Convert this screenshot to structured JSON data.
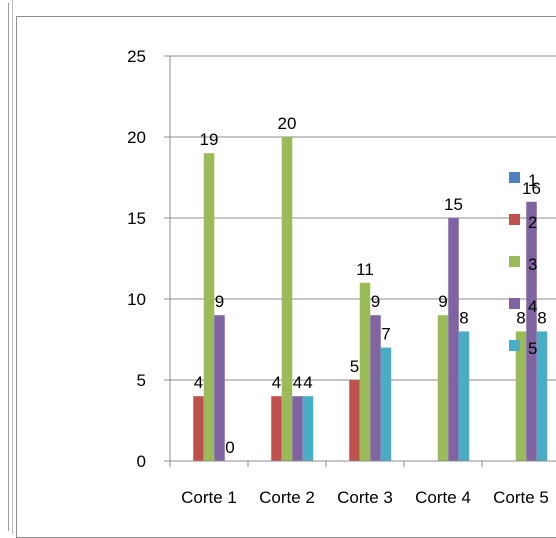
{
  "chart_data": {
    "type": "bar",
    "categories": [
      "Corte 1",
      "Corte 2",
      "Corte 3",
      "Corte 4",
      "Corte 5"
    ],
    "series": [
      {
        "name": "1",
        "values": [
          0,
          0,
          0,
          0,
          0
        ],
        "color": "#4F81BD"
      },
      {
        "name": "2",
        "values": [
          4,
          4,
          5,
          0,
          0
        ],
        "color": "#C0504D"
      },
      {
        "name": "3",
        "values": [
          19,
          20,
          11,
          9,
          8
        ],
        "color": "#9BBB59"
      },
      {
        "name": "4",
        "values": [
          9,
          4,
          9,
          15,
          16
        ],
        "color": "#8064A2"
      },
      {
        "name": "5",
        "values": [
          0,
          4,
          7,
          8,
          8
        ],
        "color": "#4BACC6"
      }
    ],
    "data_labels": [
      [
        "",
        "",
        "",
        "",
        ""
      ],
      [
        "4",
        "4",
        "5",
        "",
        ""
      ],
      [
        "19",
        "20",
        "11",
        "9",
        "8"
      ],
      [
        "9",
        "4",
        "9",
        "15",
        "16"
      ],
      [
        "0",
        "4",
        "7",
        "8",
        "8"
      ]
    ],
    "ylim": [
      0,
      25
    ],
    "yticks": [
      0,
      5,
      10,
      15,
      20,
      25
    ],
    "legend_position": "right",
    "grid": true
  }
}
